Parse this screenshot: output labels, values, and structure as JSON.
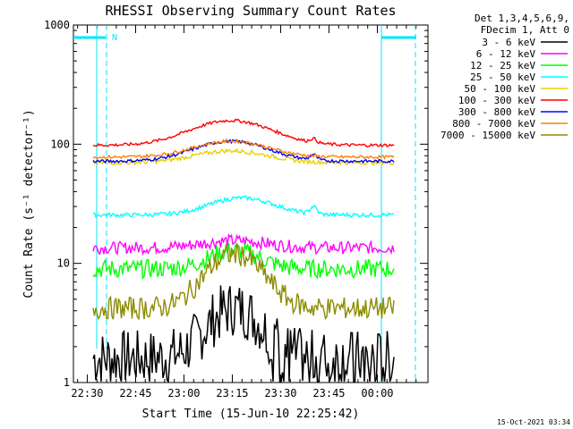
{
  "chart_data": {
    "type": "line",
    "title": "RHESSI Observing Summary Count Rates",
    "xlabel": "Start Time (15-Jun-10 22:25:42)",
    "ylabel": "Count Rate (s⁻¹ detector⁻¹)",
    "y_scale": "log",
    "ylim": [
      1,
      1000
    ],
    "y_ticks": [
      "1",
      "10",
      "100",
      "1000"
    ],
    "x_ticks": [
      "22:30",
      "22:45",
      "23:00",
      "23:15",
      "23:30",
      "23:45",
      "00:00"
    ],
    "legend_header": [
      "Det 1,3,4,5,6,9,",
      "FDecim 1, Att 0"
    ],
    "legend_position": "right",
    "grid": false,
    "footer": "15-Oct-2021 03:34",
    "night_marker": "N",
    "series": [
      {
        "name": "3 - 6 keV",
        "color": "#000000"
      },
      {
        "name": "6 - 12 keV",
        "color": "#ff00ff"
      },
      {
        "name": "12 - 25 keV",
        "color": "#00ff00"
      },
      {
        "name": "25 - 50 keV",
        "color": "#00ffff"
      },
      {
        "name": "50 - 100 keV",
        "color": "#e8d000"
      },
      {
        "name": "100 - 300 keV",
        "color": "#ff0000"
      },
      {
        "name": "300 - 800 keV",
        "color": "#0000ff"
      },
      {
        "name": "800 - 7000 keV",
        "color": "#ff8000"
      },
      {
        "name": "7000 - 15000 keV",
        "color": "#8b8b00"
      }
    ]
  }
}
